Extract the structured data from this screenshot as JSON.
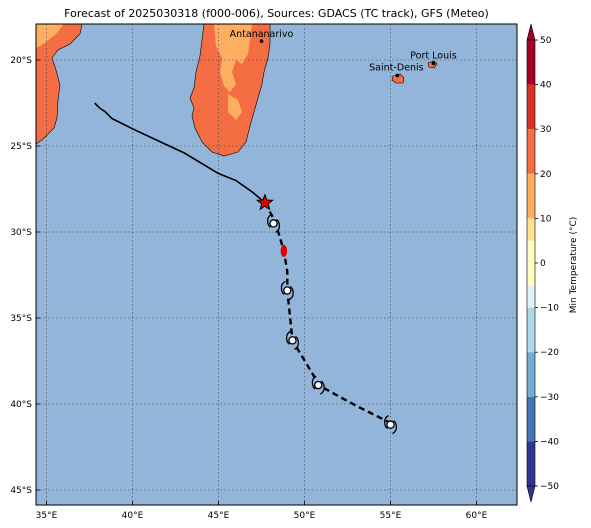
{
  "title": "Forecast of 2025030318 (f000-006), Sources: GDACS (TC track), GFS (Meteo)",
  "lat_ticks": [
    "20°S",
    "25°S",
    "30°S",
    "35°S",
    "40°S",
    "45°S"
  ],
  "lon_ticks": [
    "35°E",
    "40°E",
    "45°E",
    "50°E",
    "55°E",
    "60°E"
  ],
  "cities": [
    {
      "name": "Antananarivo",
      "lon": 47.5,
      "lat": -18.9
    },
    {
      "name": "Port Louis",
      "lon": 57.5,
      "lat": -20.2
    },
    {
      "name": "Saint-Denis",
      "lon": 55.4,
      "lat": -20.9
    }
  ],
  "colorbar": {
    "label": "Min Temperature (°C)",
    "ticks": [
      "50",
      "40",
      "30",
      "20",
      "10",
      "0",
      "−10",
      "−20",
      "−30",
      "−40",
      "−50"
    ],
    "colors": [
      "#a50026",
      "#d73027",
      "#f46d43",
      "#fdae61",
      "#fee090",
      "#ffffbf",
      "#e0f3f8",
      "#abd9e9",
      "#74add1",
      "#4575b4",
      "#313695"
    ],
    "range": [
      -50,
      50
    ]
  },
  "legend_colors": {
    "ocean": "#92b5d9",
    "land_hot": "#f46d43",
    "land_warm": "#fdae61",
    "past_track": "#000000",
    "forecast_track": "#000000",
    "current_position": "#e00000"
  },
  "observed_track": [
    [
      37.8,
      -22.5
    ],
    [
      38.1,
      -22.8
    ],
    [
      38.4,
      -23.0
    ],
    [
      38.8,
      -23.4
    ],
    [
      40.0,
      -24.0
    ],
    [
      41.5,
      -24.7
    ],
    [
      43.0,
      -25.4
    ],
    [
      44.0,
      -26.0
    ],
    [
      45.0,
      -26.6
    ],
    [
      46.0,
      -27.0
    ],
    [
      47.0,
      -27.7
    ],
    [
      47.7,
      -28.3
    ]
  ],
  "forecast_track": [
    [
      47.7,
      -28.3
    ],
    [
      48.3,
      -29.4
    ],
    [
      48.8,
      -31.1
    ],
    [
      49.0,
      -32.3
    ],
    [
      49.0,
      -33.4
    ],
    [
      49.3,
      -36.3
    ],
    [
      50.5,
      -38.3
    ],
    [
      50.8,
      -38.9
    ],
    [
      53.0,
      -40.1
    ],
    [
      55.0,
      -41.1
    ]
  ],
  "current_position": {
    "lon": 47.7,
    "lat": -28.3
  },
  "storm_positions": [
    [
      48.2,
      -29.5
    ],
    [
      49.0,
      -33.4
    ],
    [
      49.3,
      -36.3
    ],
    [
      50.8,
      -38.9
    ],
    [
      55.0,
      -41.2
    ]
  ],
  "red_marker": {
    "lon": 48.8,
    "lat": -31.1
  }
}
